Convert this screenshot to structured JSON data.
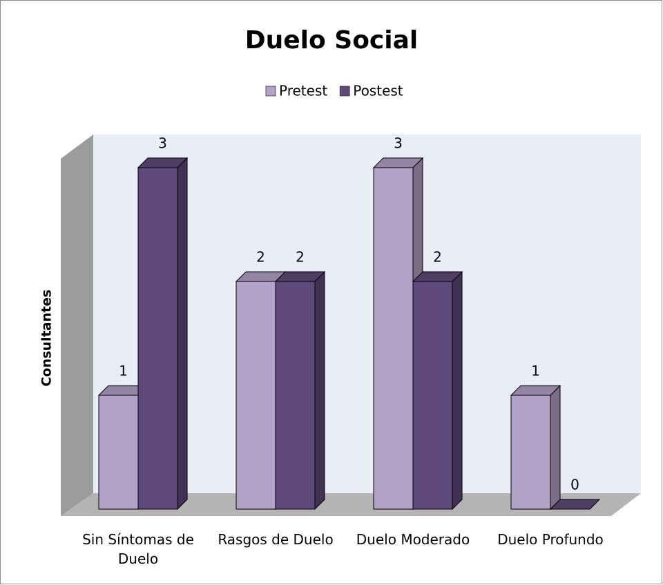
{
  "chart_data": {
    "type": "bar3d",
    "title": "Duelo Social",
    "y_label": "Consultantes",
    "categories": [
      "Sin Síntomas de Duelo",
      "Rasgos de Duelo",
      "Duelo Moderado",
      "Duelo Profundo"
    ],
    "series": [
      {
        "name": "Pretest",
        "color": "#b3a2c7",
        "values": [
          1,
          2,
          3,
          1
        ]
      },
      {
        "name": "Postest",
        "color": "#604a7b",
        "values": [
          3,
          2,
          2,
          0
        ]
      }
    ],
    "ylim": [
      0,
      3.2
    ],
    "legend": "top"
  }
}
